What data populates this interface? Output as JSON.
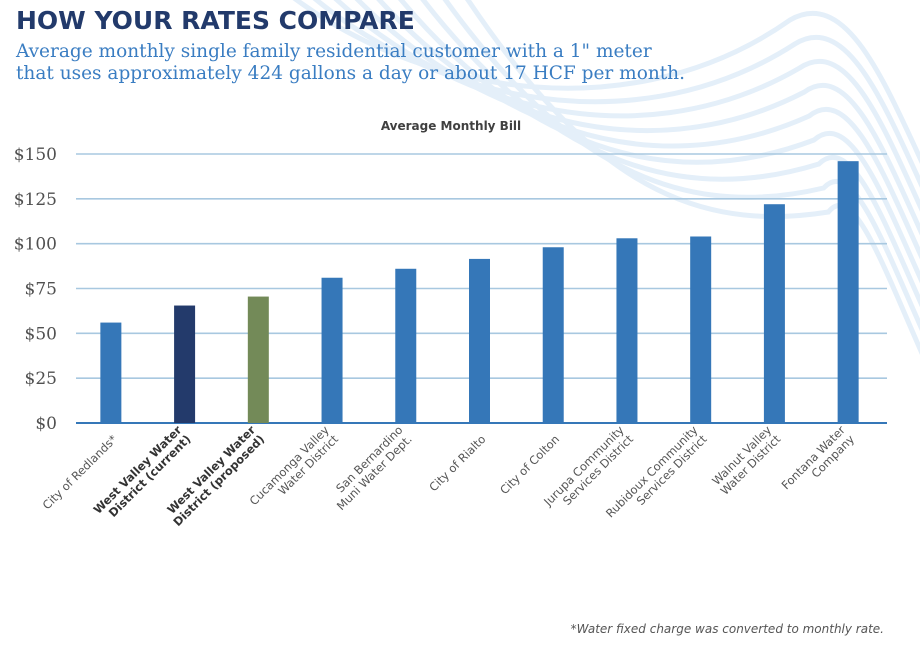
{
  "header": {
    "title": "HOW YOUR RATES COMPARE",
    "subtitle_lines": [
      "Average monthly single family residential customer with a 1\" meter",
      "that uses approximately 424 gallons a day or about 17 HCF per month."
    ]
  },
  "footnote": "*Water fixed charge was converted to monthly rate.",
  "colors": {
    "title": "#223a6b",
    "subtitle": "#3a7dc2",
    "bar_default": "#3577b8",
    "bar_current": "#233a6b",
    "bar_proposed": "#738a58",
    "gridline": "#a8c8e0",
    "baseline": "#3577b8",
    "waves": "#e4eff9"
  },
  "chart_data": {
    "type": "bar",
    "title": "Average Monthly Bill",
    "xlabel": "",
    "ylabel": "",
    "ylim": [
      0,
      150
    ],
    "yticks": [
      0,
      25,
      50,
      75,
      100,
      125,
      150
    ],
    "ytick_labels": [
      "$0",
      "$25",
      "$50",
      "$75",
      "$100",
      "$125",
      "$150"
    ],
    "grid": true,
    "legend": "none",
    "categories": [
      {
        "lines": [
          "City of Redlands*"
        ],
        "bold": false
      },
      {
        "lines": [
          "West Valley Water",
          "District (current)"
        ],
        "bold": true
      },
      {
        "lines": [
          "West Valley Water",
          "District (proposed)"
        ],
        "bold": true
      },
      {
        "lines": [
          "Cucamonga Valley",
          "Water District"
        ],
        "bold": false
      },
      {
        "lines": [
          "San Bernardino",
          "Muni Water Dept."
        ],
        "bold": false
      },
      {
        "lines": [
          "City of Rialto"
        ],
        "bold": false
      },
      {
        "lines": [
          "City of Colton"
        ],
        "bold": false
      },
      {
        "lines": [
          "Jurupa Community",
          "Services District"
        ],
        "bold": false
      },
      {
        "lines": [
          "Rubidoux Community",
          "Services District"
        ],
        "bold": false
      },
      {
        "lines": [
          "Walnut Valley",
          "Water District"
        ],
        "bold": false
      },
      {
        "lines": [
          "Fontana Water",
          "Company"
        ],
        "bold": false
      }
    ],
    "values": [
      56,
      65.5,
      70.5,
      81,
      86,
      91.5,
      98,
      103,
      104,
      122,
      146
    ],
    "bar_color_keys": [
      "bar_default",
      "bar_current",
      "bar_proposed",
      "bar_default",
      "bar_default",
      "bar_default",
      "bar_default",
      "bar_default",
      "bar_default",
      "bar_default",
      "bar_default"
    ]
  }
}
